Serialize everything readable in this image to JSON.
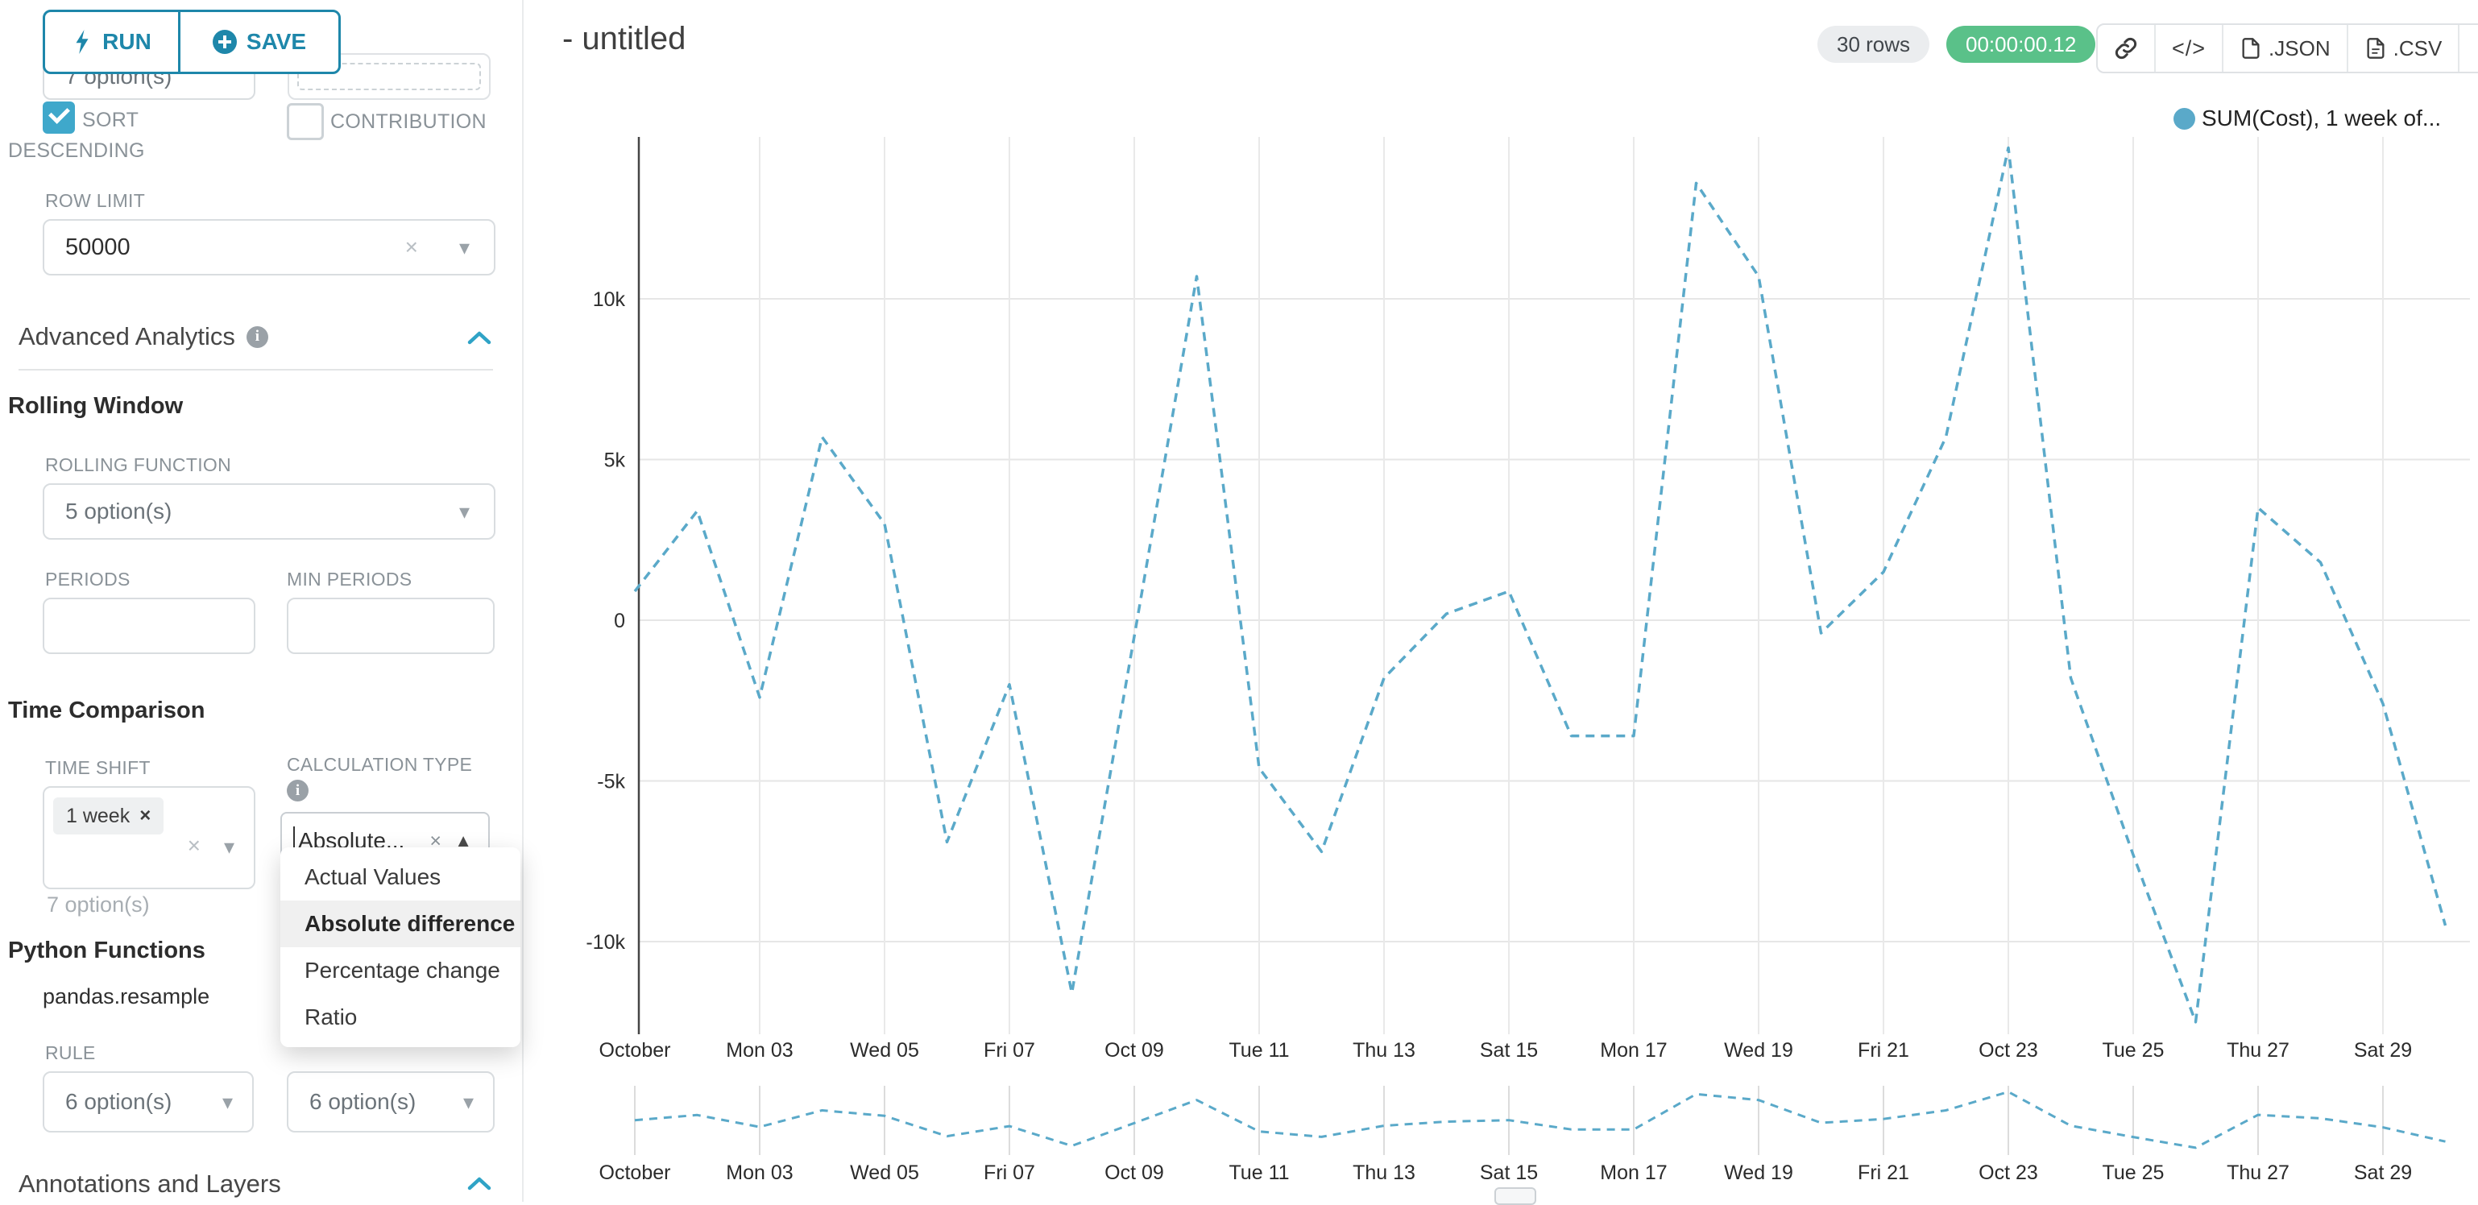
{
  "app": {
    "title": "- untitled"
  },
  "icons": {
    "close": "×",
    "caret_down": "▾",
    "caret_up": "▲",
    "info": "i",
    "code": "</>"
  },
  "toolbar": {
    "run_label": "RUN",
    "save_label": "SAVE"
  },
  "header": {
    "rows_badge": "30 rows",
    "timer": "00:00:00.12",
    "export_json_label": ".JSON",
    "export_csv_label": ".CSV"
  },
  "sidebar": {
    "hidden_select_value": "7 option(s)",
    "sort_descending_label": "SORT DESCENDING",
    "contribution_label": "CONTRIBUTION",
    "row_limit_label": "ROW LIMIT",
    "row_limit_value": "50000",
    "advanced_analytics_title": "Advanced Analytics",
    "rolling_window": {
      "title": "Rolling Window",
      "rolling_function_label": "ROLLING FUNCTION",
      "rolling_function_value": "5 option(s)",
      "periods_label": "PERIODS",
      "min_periods_label": "MIN PERIODS"
    },
    "time_comparison": {
      "title": "Time Comparison",
      "time_shift_label": "TIME SHIFT",
      "time_shift_tag": "1 week",
      "time_shift_placeholder": "7 option(s)",
      "calculation_type_label": "CALCULATION TYPE",
      "calculation_type_value": "Absolute...",
      "dropdown": {
        "options": [
          "Actual Values",
          "Absolute difference",
          "Percentage change",
          "Ratio"
        ],
        "selected": "Absolute difference"
      }
    },
    "python_functions": {
      "title": "Python Functions",
      "subtitle": "pandas.resample",
      "rule_label": "RULE",
      "rule_value_1": "6 option(s)",
      "rule_value_2": "6 option(s)"
    },
    "annotations_title": "Annotations and Layers"
  },
  "chart_data": {
    "type": "line",
    "title": "- untitled",
    "line_style": "dashed",
    "line_color": "#5aa9c9",
    "grid": true,
    "legend_position": "top-right",
    "legend": [
      {
        "label": "SUM(Cost), 1 week of...",
        "color": "#5aa9c9"
      }
    ],
    "x_categories": [
      "Oct 01",
      "Oct 02",
      "Oct 03",
      "Oct 04",
      "Oct 05",
      "Oct 06",
      "Oct 07",
      "Oct 08",
      "Oct 09",
      "Oct 10",
      "Oct 11",
      "Oct 12",
      "Oct 13",
      "Oct 14",
      "Oct 15",
      "Oct 16",
      "Oct 17",
      "Oct 18",
      "Oct 19",
      "Oct 20",
      "Oct 21",
      "Oct 22",
      "Oct 23",
      "Oct 24",
      "Oct 25",
      "Oct 26",
      "Oct 27",
      "Oct 28",
      "Oct 29",
      "Oct 30"
    ],
    "series": [
      {
        "name": "SUM(Cost), 1 week offset (Absolute difference)",
        "values": [
          900,
          3400,
          -2400,
          5700,
          3000,
          -6900,
          -2000,
          -11600,
          -500,
          10700,
          -4600,
          -7200,
          -1800,
          200,
          900,
          -3600,
          -3600,
          13600,
          10700,
          -400,
          1500,
          5700,
          14700,
          -1800,
          -7300,
          -12500,
          3500,
          1800,
          -2600,
          -9500
        ]
      }
    ],
    "x_tick_labels": [
      "October",
      "Mon 03",
      "Wed 05",
      "Fri 07",
      "Oct 09",
      "Tue 11",
      "Thu 13",
      "Sat 15",
      "Mon 17",
      "Wed 19",
      "Fri 21",
      "Oct 23",
      "Tue 25",
      "Thu 27",
      "Sat 29"
    ],
    "x_tick_days": [
      1,
      3,
      5,
      7,
      9,
      11,
      13,
      15,
      17,
      19,
      21,
      23,
      25,
      27,
      29
    ],
    "y_ticks": [
      {
        "label": "10k",
        "value": 10000
      },
      {
        "label": "5k",
        "value": 5000
      },
      {
        "label": "0",
        "value": 0
      },
      {
        "label": "-5k",
        "value": -5000
      },
      {
        "label": "-10k",
        "value": -10000
      }
    ],
    "ylim": [
      -13500,
      15200
    ],
    "has_mini_preview": true
  }
}
